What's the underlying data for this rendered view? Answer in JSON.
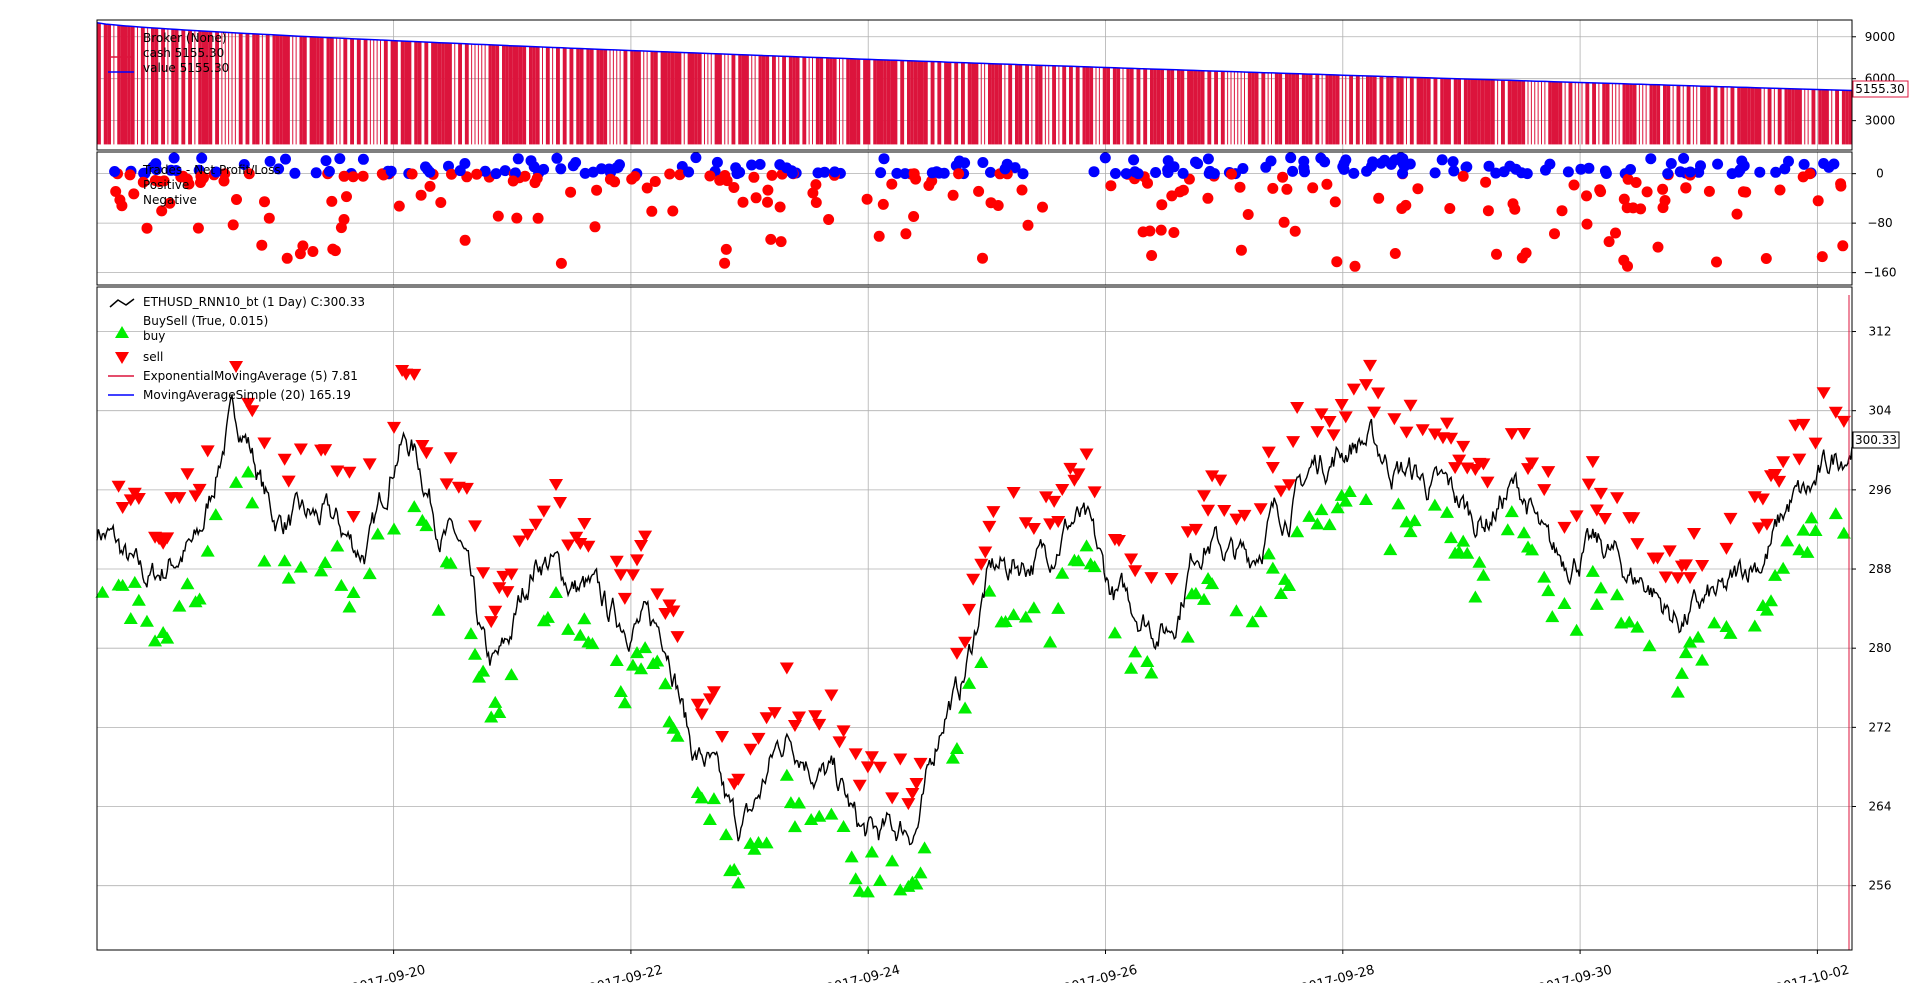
{
  "chart_data": [
    {
      "panel": "broker",
      "type": "line",
      "legend": {
        "title": "Broker (None)",
        "entries": [
          {
            "label": "cash 5155.30",
            "color": "#dc143c"
          },
          {
            "label": "value 5155.30",
            "color": "#0000ff"
          }
        ]
      },
      "yticks": [
        3000,
        6000,
        9000
      ],
      "ylim": [
        900,
        10200
      ],
      "value_tag": "5155.30",
      "series": [
        {
          "name": "value",
          "color": "#0000ff",
          "start": 10000,
          "end": 5155.3
        }
      ],
      "grid": true
    },
    {
      "panel": "trades",
      "type": "scatter",
      "legend": {
        "title": "Trades - Net Profit/Loss",
        "entries": [
          {
            "label": "Positive",
            "color": "#0000ff"
          },
          {
            "label": "Negative",
            "color": "#ff0000"
          }
        ]
      },
      "yticks": [
        -160,
        -80,
        0
      ],
      "ylim": [
        -180,
        35
      ],
      "grid": true
    },
    {
      "panel": "price",
      "type": "line",
      "legend": [
        {
          "label": "ETHUSD_RNN10_bt (1 Day) C:300.33",
          "color": "#000000",
          "kind": "line"
        },
        {
          "label": "BuySell (True, 0.015)",
          "color": "",
          "kind": "none"
        },
        {
          "label": "buy",
          "color": "#00ee00",
          "kind": "triangle-up"
        },
        {
          "label": "sell",
          "color": "#ff0000",
          "kind": "triangle-down"
        },
        {
          "label": "ExponentialMovingAverage (5) 7.81",
          "color": "#dc143c",
          "kind": "line"
        },
        {
          "label": "MovingAverageSimple (20) 165.19",
          "color": "#0000ff",
          "kind": "line"
        }
      ],
      "yticks": [
        256,
        264,
        272,
        280,
        288,
        296,
        304,
        312
      ],
      "ylim": [
        249.5,
        316.5
      ],
      "value_tag": "300.33",
      "xtick_labels": [
        "2017-09-20",
        "2017-09-22",
        "2017-09-24",
        "2017-09-26",
        "2017-09-28",
        "2017-09-30",
        "2017-10-02"
      ],
      "x_range": [
        "2017-09-17 12:00",
        "2017-10-02 07:00"
      ],
      "close_anchors": [
        [
          "2017-09-17 12:00",
          292
        ],
        [
          "2017-09-17 22:00",
          287
        ],
        [
          "2017-09-18 07:00",
          290
        ],
        [
          "2017-09-18 16:00",
          303
        ],
        [
          "2017-09-19 01:00",
          293
        ],
        [
          "2017-09-19 10:00",
          293
        ],
        [
          "2017-09-19 18:00",
          290
        ],
        [
          "2017-09-20 02:00",
          301
        ],
        [
          "2017-09-20 12:00",
          291
        ],
        [
          "2017-09-20 20:00",
          278
        ],
        [
          "2017-09-21 06:00",
          289
        ],
        [
          "2017-09-21 14:00",
          286
        ],
        [
          "2017-09-21 22:00",
          283
        ],
        [
          "2017-09-22 06:00",
          282
        ],
        [
          "2017-09-22 14:00",
          269
        ],
        [
          "2017-09-22 22:00",
          262
        ],
        [
          "2017-09-23 08:00",
          271
        ],
        [
          "2017-09-23 16:00",
          267
        ],
        [
          "2017-09-24 00:00",
          261
        ],
        [
          "2017-09-24 09:00",
          262
        ],
        [
          "2017-09-24 17:00",
          275
        ],
        [
          "2017-09-25 02:00",
          288
        ],
        [
          "2017-09-25 10:00",
          289
        ],
        [
          "2017-09-25 18:00",
          293
        ],
        [
          "2017-09-26 03:00",
          285
        ],
        [
          "2017-09-26 12:00",
          282
        ],
        [
          "2017-09-26 20:00",
          291
        ],
        [
          "2017-09-27 04:00",
          289
        ],
        [
          "2017-09-27 12:00",
          294
        ],
        [
          "2017-09-27 20:00",
          299
        ],
        [
          "2017-09-28 04:00",
          301
        ],
        [
          "2017-09-28 12:00",
          298
        ],
        [
          "2017-09-28 20:00",
          296
        ],
        [
          "2017-09-29 04:00",
          293
        ],
        [
          "2017-09-29 11:00",
          296
        ],
        [
          "2017-09-29 19:00",
          289
        ],
        [
          "2017-09-30 04:00",
          290
        ],
        [
          "2017-09-30 12:00",
          287
        ],
        [
          "2017-09-30 20:00",
          283
        ],
        [
          "2017-10-01 04:00",
          285
        ],
        [
          "2017-10-01 12:00",
          289
        ],
        [
          "2017-10-01 20:00",
          295
        ],
        [
          "2017-10-02 07:00",
          300.33
        ]
      ],
      "grid": true
    }
  ]
}
